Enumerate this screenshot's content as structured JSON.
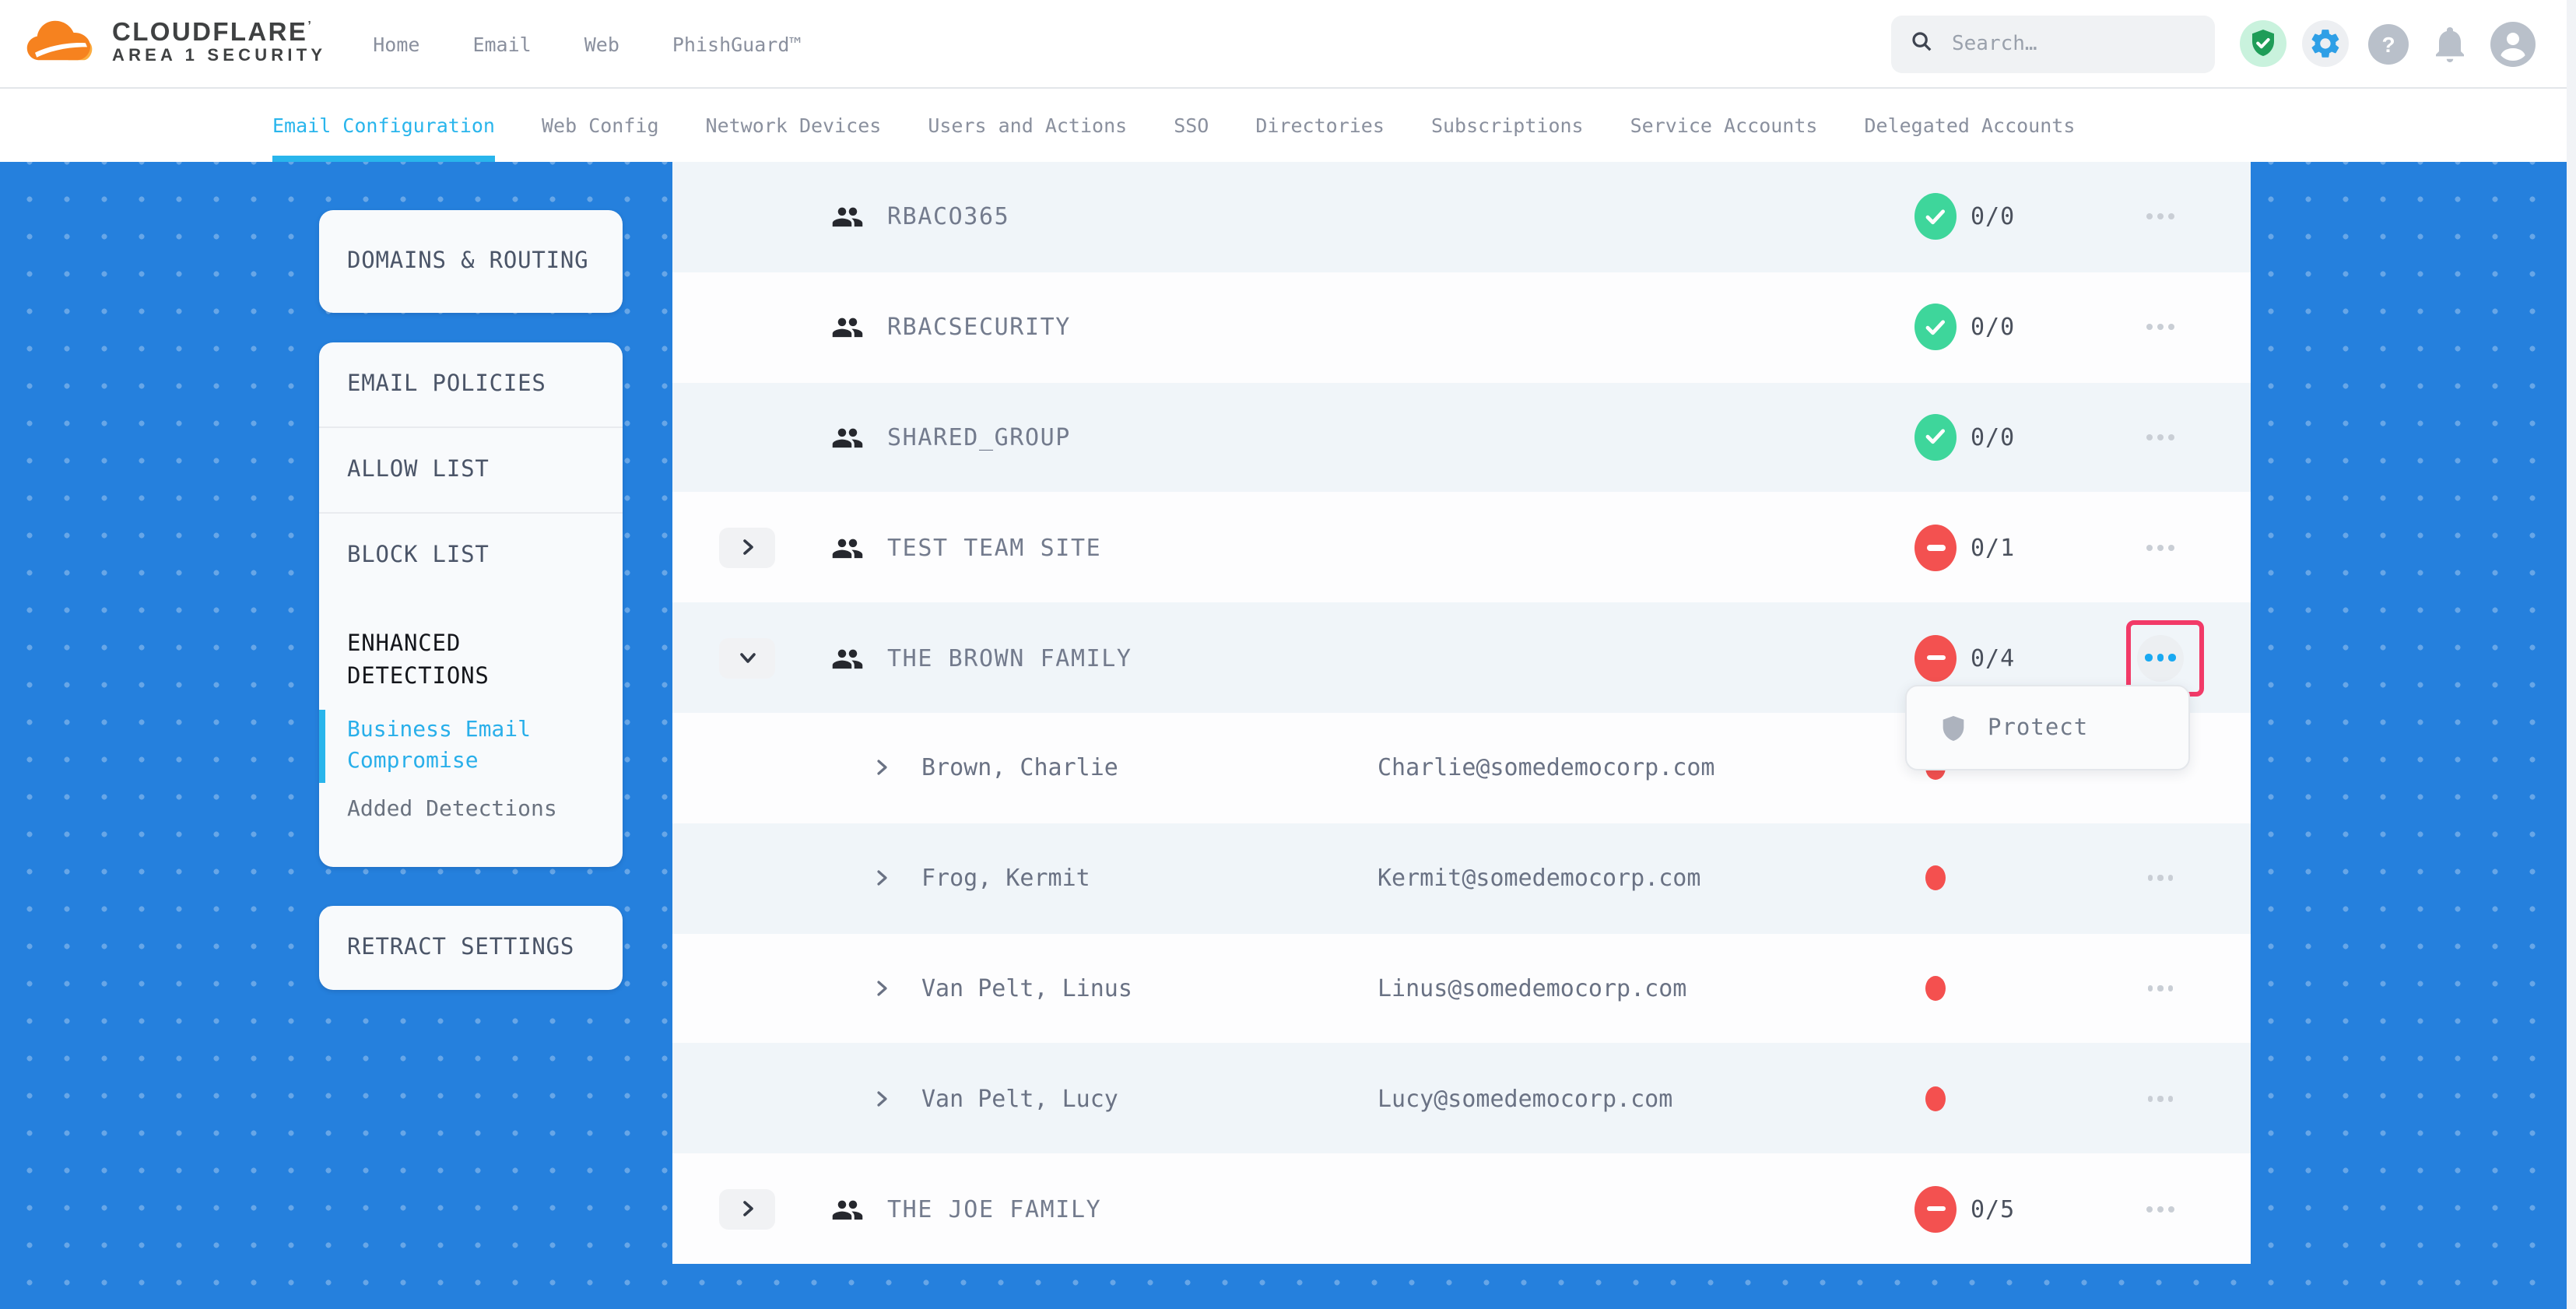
{
  "brand": {
    "wordmark": "CLOUDFLARE",
    "mark_suffix": "’",
    "subtitle": "AREA 1 SECURITY"
  },
  "topnav": {
    "items": [
      "Home",
      "Email",
      "Web",
      "PhishGuard™"
    ]
  },
  "search": {
    "placeholder": "Search…"
  },
  "topbar_icons": [
    {
      "id": "protection-badge-icon"
    },
    {
      "id": "settings-gear-icon"
    },
    {
      "id": "help-icon"
    },
    {
      "id": "notifications-bell-icon"
    },
    {
      "id": "account-icon"
    }
  ],
  "tabs": {
    "items": [
      {
        "label": "Email Configuration",
        "active": true
      },
      {
        "label": "Web Config",
        "active": false
      },
      {
        "label": "Network Devices",
        "active": false
      },
      {
        "label": "Users and Actions",
        "active": false
      },
      {
        "label": "SSO",
        "active": false
      },
      {
        "label": "Directories",
        "active": false
      },
      {
        "label": "Subscriptions",
        "active": false
      },
      {
        "label": "Service Accounts",
        "active": false
      },
      {
        "label": "Delegated Accounts",
        "active": false
      }
    ]
  },
  "sidebar": {
    "cards": [
      {
        "id": "domains-routing",
        "items": [
          {
            "label": "DOMAINS & ROUTING",
            "type": "link"
          }
        ]
      },
      {
        "id": "email-policies",
        "items": [
          {
            "label": "EMAIL POLICIES",
            "type": "link"
          },
          {
            "label": "ALLOW LIST",
            "type": "link"
          },
          {
            "label": "BLOCK LIST",
            "type": "link"
          },
          {
            "label": "ENHANCED DETECTIONS",
            "type": "section-active"
          },
          {
            "label": "Business Email Compromise",
            "type": "sub-active"
          },
          {
            "label": "Added Detections",
            "type": "sub"
          }
        ]
      },
      {
        "id": "retract-settings",
        "items": [
          {
            "label": "RETRACT SETTINGS",
            "type": "link"
          }
        ]
      }
    ]
  },
  "table": {
    "rows": [
      {
        "kind": "group",
        "name": "RBACO365",
        "expander": null,
        "status": "ok",
        "count": "0/0",
        "menu": "default"
      },
      {
        "kind": "group",
        "name": "RBACSECURITY",
        "expander": null,
        "status": "ok",
        "count": "0/0",
        "menu": "default"
      },
      {
        "kind": "group",
        "name": "SHARED_GROUP",
        "expander": null,
        "status": "ok",
        "count": "0/0",
        "menu": "default"
      },
      {
        "kind": "group",
        "name": "TEST TEAM SITE",
        "expander": "collapsed",
        "status": "alert",
        "count": "0/1",
        "menu": "default"
      },
      {
        "kind": "group",
        "name": "THE BROWN FAMILY",
        "expander": "expanded",
        "status": "alert",
        "count": "0/4",
        "menu": "active",
        "annotated": true
      },
      {
        "kind": "member",
        "name": "Brown, Charlie",
        "email": "Charlie@somedemocorp.com",
        "status": "dot",
        "menu": "none"
      },
      {
        "kind": "member",
        "name": "Frog, Kermit",
        "email": "Kermit@somedemocorp.com",
        "status": "dot",
        "menu": "small"
      },
      {
        "kind": "member",
        "name": "Van Pelt, Linus",
        "email": "Linus@somedemocorp.com",
        "status": "dot",
        "menu": "small"
      },
      {
        "kind": "member",
        "name": "Van Pelt, Lucy",
        "email": "Lucy@somedemocorp.com",
        "status": "dot",
        "menu": "small"
      },
      {
        "kind": "group",
        "name": "THE JOE FAMILY",
        "expander": "collapsed",
        "status": "alert",
        "count": "0/5",
        "menu": "default"
      }
    ]
  },
  "popover": {
    "label": "Protect"
  },
  "colors": {
    "background_blue": "#2580DD",
    "accent_cyan": "#29B5EC",
    "status_green": "#3ED69B",
    "status_red": "#F35150",
    "annotation_pink": "#F23A68",
    "menu_active_blue": "#19A9F2",
    "brand_orange": "#F6821F",
    "brand_orange_light": "#FBAD41"
  }
}
